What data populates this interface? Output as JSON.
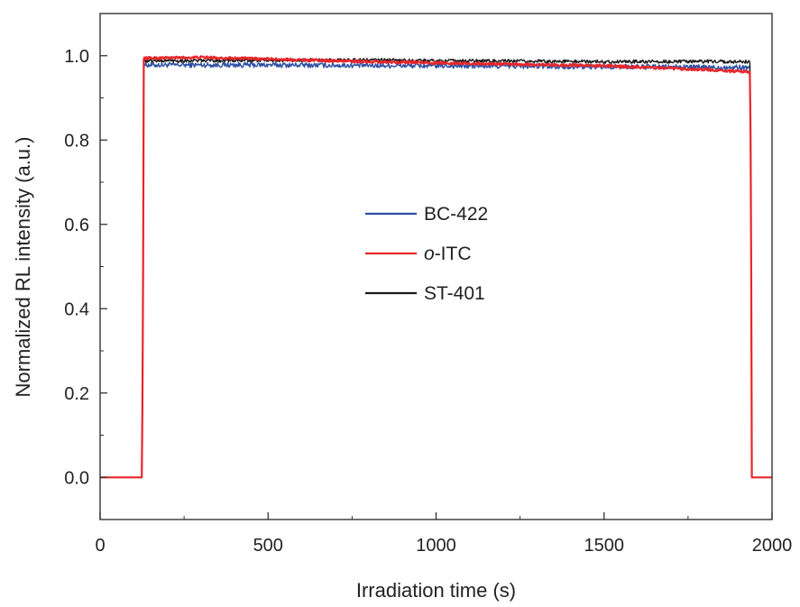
{
  "chart_data": {
    "type": "line",
    "xlabel": "Irradiation time (s)",
    "ylabel": "Normalized RL intensity (a.u.)",
    "xlim": [
      0,
      2000
    ],
    "ylim": [
      -0.1,
      1.1
    ],
    "x_ticks": [
      "0",
      "500",
      "1000",
      "1500",
      "2000"
    ],
    "y_ticks": [
      "0.0",
      "0.2",
      "0.4",
      "0.6",
      "0.8",
      "1.0"
    ],
    "grid": false,
    "legend_position": "center",
    "series": [
      {
        "name": "BC-422",
        "color": "#2c4fa3",
        "noise": 0.006,
        "x": [
          0,
          125,
          128,
          130,
          500,
          1000,
          1500,
          1935,
          1938,
          1940,
          2000
        ],
        "y": [
          0.0,
          0.0,
          0.5,
          0.978,
          0.978,
          0.976,
          0.974,
          0.972,
          0.5,
          0.0,
          0.0
        ]
      },
      {
        "name": "o-ITC",
        "color": "#e8262a",
        "noise": 0.003,
        "x": [
          0,
          125,
          128,
          130,
          300,
          500,
          800,
          1000,
          1200,
          1500,
          1800,
          1935,
          1938,
          1940,
          2000
        ],
        "y": [
          0.0,
          0.0,
          0.5,
          0.994,
          0.996,
          0.992,
          0.986,
          0.983,
          0.98,
          0.976,
          0.967,
          0.961,
          0.5,
          0.0,
          0.0
        ]
      },
      {
        "name": "ST-401",
        "color": "#1a1a1a",
        "noise": 0.004,
        "x": [
          0,
          125,
          128,
          130,
          500,
          800,
          1000,
          1500,
          1935,
          1938,
          1940,
          2000
        ],
        "y": [
          0.0,
          0.0,
          0.5,
          0.988,
          0.989,
          0.99,
          0.988,
          0.986,
          0.986,
          0.5,
          0.0,
          0.0
        ]
      }
    ],
    "legend": {
      "entries": [
        {
          "prefix": "",
          "emphasis": "",
          "suffix": "BC-422"
        },
        {
          "prefix": "",
          "emphasis": "o",
          "suffix": "-ITC"
        },
        {
          "prefix": "",
          "emphasis": "",
          "suffix": "ST-401"
        }
      ]
    }
  }
}
